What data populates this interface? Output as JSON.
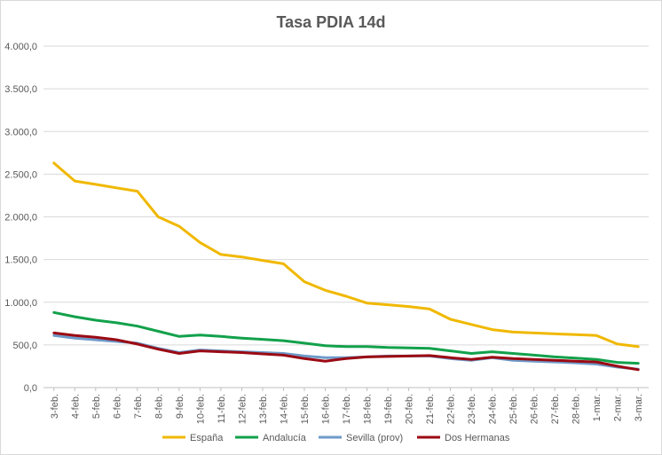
{
  "chart_data": {
    "type": "line",
    "title": "Tasa PDIA 14d",
    "xlabel": "",
    "ylabel": "",
    "categories": [
      "3-feb.",
      "4-feb.",
      "5-feb.",
      "6-feb.",
      "7-feb.",
      "8-feb.",
      "9-feb.",
      "10-feb.",
      "11-feb.",
      "12-feb.",
      "13-feb.",
      "14-feb.",
      "15-feb.",
      "16-feb.",
      "17-feb.",
      "18-feb.",
      "19-feb.",
      "20-feb.",
      "21-feb.",
      "22-feb.",
      "23-feb.",
      "24-feb.",
      "25-feb.",
      "26-feb.",
      "27-feb.",
      "28-feb.",
      "1-mar.",
      "2-mar.",
      "3-mar."
    ],
    "ylim": [
      0,
      4000
    ],
    "yticks": [
      "0,0",
      "500,0",
      "1.000,0",
      "1.500,0",
      "2.000,0",
      "2.500,0",
      "3.000,0",
      "3.500,0",
      "4.000,0"
    ],
    "grid": true,
    "legend_position": "bottom",
    "series": [
      {
        "name": "España",
        "color": "#f0b800",
        "values": [
          2630,
          2420,
          2380,
          2340,
          2300,
          2000,
          1890,
          1700,
          1560,
          1530,
          1490,
          1450,
          1240,
          1140,
          1070,
          990,
          970,
          950,
          920,
          800,
          740,
          680,
          650,
          640,
          630,
          620,
          610,
          510,
          480
        ]
      },
      {
        "name": "Andalucía",
        "color": "#12a14b",
        "values": [
          880,
          830,
          790,
          760,
          720,
          660,
          600,
          615,
          600,
          580,
          565,
          550,
          520,
          490,
          480,
          480,
          470,
          465,
          460,
          430,
          400,
          420,
          400,
          380,
          360,
          345,
          330,
          295,
          285
        ]
      },
      {
        "name": "Sevilla (prov)",
        "color": "#6e9ac9",
        "values": [
          610,
          580,
          560,
          540,
          520,
          460,
          410,
          440,
          430,
          420,
          410,
          400,
          370,
          350,
          350,
          360,
          370,
          370,
          370,
          340,
          320,
          350,
          320,
          310,
          300,
          290,
          275,
          240,
          215
        ]
      },
      {
        "name": "Dos Hermanas",
        "color": "#9b0a13",
        "values": [
          640,
          610,
          590,
          560,
          510,
          450,
          400,
          430,
          420,
          410,
          395,
          380,
          340,
          310,
          340,
          360,
          365,
          370,
          375,
          350,
          330,
          355,
          340,
          330,
          320,
          310,
          300,
          250,
          210
        ]
      }
    ]
  }
}
